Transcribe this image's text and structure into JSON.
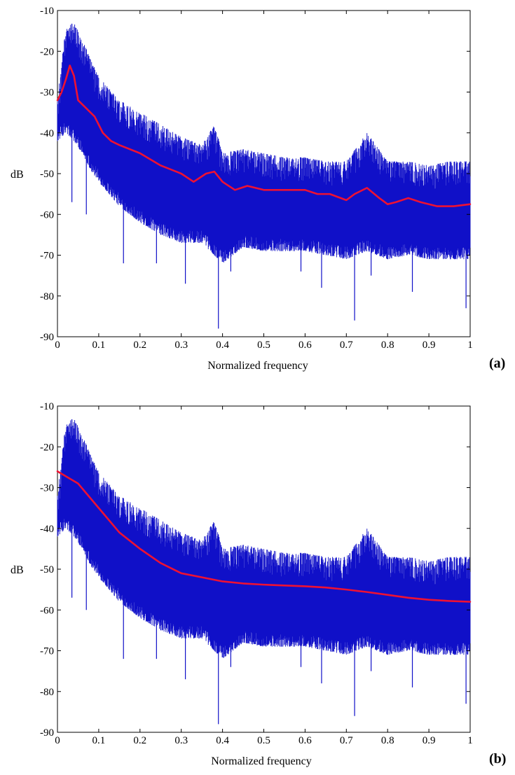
{
  "chart_data": [
    {
      "type": "line",
      "panel_label": "(a)",
      "xlabel": "Normalized frequency",
      "ylabel": "dB",
      "xlim": [
        0,
        1
      ],
      "ylim": [
        -90,
        -10
      ],
      "xticks": [
        0,
        0.1,
        0.2,
        0.3,
        0.4,
        0.5,
        0.6,
        0.7,
        0.8,
        0.9,
        1
      ],
      "xtick_labels": [
        "0",
        "0.1",
        "0.2",
        "0.3",
        "0.4",
        "0.5",
        "0.6",
        "0.7",
        "0.8",
        "0.9",
        "1"
      ],
      "yticks": [
        -10,
        -20,
        -30,
        -40,
        -50,
        -60,
        -70,
        -80,
        -90
      ],
      "ytick_labels": [
        "-10",
        "-20",
        "-30",
        "-40",
        "-50",
        "-60",
        "-70",
        "-80",
        "-90"
      ],
      "grid": false,
      "series": [
        {
          "style": "noisy spectrum envelope",
          "color": "#1010c8",
          "x": [
            0,
            0.02,
            0.04,
            0.06,
            0.08,
            0.1,
            0.15,
            0.2,
            0.25,
            0.3,
            0.35,
            0.38,
            0.4,
            0.45,
            0.5,
            0.55,
            0.6,
            0.65,
            0.7,
            0.75,
            0.8,
            0.85,
            0.9,
            0.95,
            1
          ],
          "upper": [
            -32,
            -14,
            -13,
            -17,
            -22,
            -26,
            -32,
            -35,
            -38,
            -41,
            -43,
            -38,
            -45,
            -44,
            -45,
            -46,
            -46,
            -47,
            -47,
            -40,
            -47,
            -47,
            -48,
            -47,
            -47
          ],
          "lower": [
            -42,
            -40,
            -42,
            -45,
            -49,
            -52,
            -58,
            -62,
            -65,
            -67,
            -67,
            -70,
            -72,
            -68,
            -69,
            -69,
            -69,
            -70,
            -71,
            -69,
            -71,
            -70,
            -71,
            -71,
            -71
          ],
          "spikes": [
            {
              "x": 0.035,
              "y": -57
            },
            {
              "x": 0.07,
              "y": -60
            },
            {
              "x": 0.16,
              "y": -72
            },
            {
              "x": 0.24,
              "y": -72
            },
            {
              "x": 0.31,
              "y": -77
            },
            {
              "x": 0.39,
              "y": -88
            },
            {
              "x": 0.42,
              "y": -74
            },
            {
              "x": 0.59,
              "y": -74
            },
            {
              "x": 0.64,
              "y": -78
            },
            {
              "x": 0.72,
              "y": -86
            },
            {
              "x": 0.76,
              "y": -75
            },
            {
              "x": 0.86,
              "y": -79
            },
            {
              "x": 0.99,
              "y": -83
            }
          ]
        },
        {
          "style": "smoothed estimate",
          "color": "#ee1133",
          "x": [
            0,
            0.01,
            0.02,
            0.03,
            0.04,
            0.05,
            0.07,
            0.09,
            0.11,
            0.13,
            0.15,
            0.2,
            0.25,
            0.3,
            0.33,
            0.36,
            0.38,
            0.4,
            0.43,
            0.46,
            0.5,
            0.55,
            0.6,
            0.63,
            0.66,
            0.7,
            0.72,
            0.75,
            0.78,
            0.8,
            0.82,
            0.85,
            0.88,
            0.92,
            0.96,
            1
          ],
          "y": [
            -32,
            -30,
            -27,
            -23.5,
            -26,
            -32,
            -34,
            -36,
            -40,
            -42,
            -43,
            -45,
            -48,
            -50,
            -52,
            -50,
            -49.5,
            -52,
            -54,
            -53,
            -54,
            -54,
            -54,
            -55,
            -55,
            -56.5,
            -55,
            -53.5,
            -56,
            -57.5,
            -57,
            -56,
            -57,
            -58,
            -58,
            -57.5
          ]
        }
      ]
    },
    {
      "type": "line",
      "panel_label": "(b)",
      "xlabel": "Normalized frequency",
      "ylabel": "dB",
      "xlim": [
        0,
        1
      ],
      "ylim": [
        -90,
        -10
      ],
      "xticks": [
        0,
        0.1,
        0.2,
        0.3,
        0.4,
        0.5,
        0.6,
        0.7,
        0.8,
        0.9,
        1
      ],
      "xtick_labels": [
        "0",
        "0.1",
        "0.2",
        "0.3",
        "0.4",
        "0.5",
        "0.6",
        "0.7",
        "0.8",
        "0.9",
        "1"
      ],
      "yticks": [
        -10,
        -20,
        -30,
        -40,
        -50,
        -60,
        -70,
        -80,
        -90
      ],
      "ytick_labels": [
        "-10",
        "-20",
        "-30",
        "-40",
        "-50",
        "-60",
        "-70",
        "-80",
        "-90"
      ],
      "grid": false,
      "series": [
        {
          "style": "noisy spectrum envelope",
          "color": "#1010c8",
          "x": [
            0,
            0.02,
            0.04,
            0.06,
            0.08,
            0.1,
            0.15,
            0.2,
            0.25,
            0.3,
            0.35,
            0.38,
            0.4,
            0.45,
            0.5,
            0.55,
            0.6,
            0.65,
            0.7,
            0.75,
            0.8,
            0.85,
            0.9,
            0.95,
            1
          ],
          "upper": [
            -32,
            -14,
            -13,
            -17,
            -22,
            -26,
            -32,
            -35,
            -38,
            -41,
            -43,
            -38,
            -45,
            -44,
            -45,
            -46,
            -46,
            -47,
            -47,
            -40,
            -47,
            -47,
            -48,
            -47,
            -47
          ],
          "lower": [
            -42,
            -40,
            -42,
            -45,
            -49,
            -52,
            -58,
            -62,
            -65,
            -67,
            -67,
            -70,
            -72,
            -68,
            -69,
            -69,
            -69,
            -70,
            -71,
            -69,
            -71,
            -70,
            -71,
            -71,
            -71
          ],
          "spikes": [
            {
              "x": 0.035,
              "y": -57
            },
            {
              "x": 0.07,
              "y": -60
            },
            {
              "x": 0.16,
              "y": -72
            },
            {
              "x": 0.24,
              "y": -72
            },
            {
              "x": 0.31,
              "y": -77
            },
            {
              "x": 0.39,
              "y": -88
            },
            {
              "x": 0.42,
              "y": -74
            },
            {
              "x": 0.59,
              "y": -74
            },
            {
              "x": 0.64,
              "y": -78
            },
            {
              "x": 0.72,
              "y": -86
            },
            {
              "x": 0.76,
              "y": -75
            },
            {
              "x": 0.86,
              "y": -79
            },
            {
              "x": 0.99,
              "y": -83
            }
          ]
        },
        {
          "style": "smoothed estimate",
          "color": "#ee1133",
          "x": [
            0,
            0.05,
            0.1,
            0.15,
            0.2,
            0.25,
            0.3,
            0.35,
            0.4,
            0.45,
            0.5,
            0.55,
            0.6,
            0.65,
            0.7,
            0.75,
            0.8,
            0.85,
            0.9,
            0.95,
            1
          ],
          "y": [
            -26,
            -29,
            -35,
            -41,
            -45,
            -48.5,
            -51,
            -52,
            -53,
            -53.5,
            -53.8,
            -54,
            -54.2,
            -54.5,
            -55,
            -55.6,
            -56.3,
            -57,
            -57.5,
            -57.8,
            -58
          ]
        }
      ]
    }
  ]
}
